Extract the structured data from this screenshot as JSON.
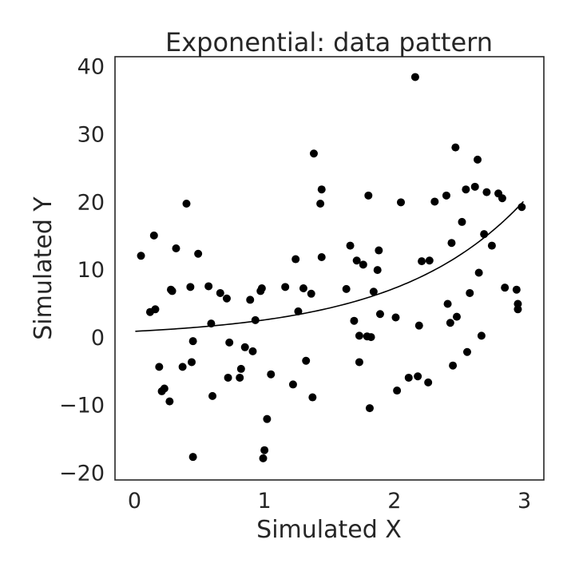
{
  "chart_data": {
    "type": "scatter",
    "title": "Exponential: data pattern",
    "xlabel": "Simulated X",
    "ylabel": "Simulated Y",
    "xlim": [
      -0.15,
      3.15
    ],
    "ylim": [
      -21,
      41.5
    ],
    "xticks": [
      0,
      1,
      2,
      3
    ],
    "yticks": [
      -20,
      -10,
      0,
      10,
      20,
      30,
      40
    ],
    "xtick_labels": [
      "0",
      "1",
      "2",
      "3"
    ],
    "ytick_labels": [
      "−20",
      "−10",
      "0",
      "10",
      "20",
      "30",
      "40"
    ],
    "grid": false,
    "marker_color": "#000000",
    "curve_color": "#000000",
    "points": [
      [
        0.05,
        12.1
      ],
      [
        0.12,
        3.8
      ],
      [
        0.15,
        15.1
      ],
      [
        0.16,
        4.2
      ],
      [
        0.19,
        -4.3
      ],
      [
        0.21,
        -7.9
      ],
      [
        0.23,
        -7.5
      ],
      [
        0.27,
        -9.4
      ],
      [
        0.28,
        7.1
      ],
      [
        0.29,
        6.9
      ],
      [
        0.32,
        13.2
      ],
      [
        0.37,
        -4.3
      ],
      [
        0.4,
        19.8
      ],
      [
        0.43,
        7.5
      ],
      [
        0.44,
        -3.6
      ],
      [
        0.45,
        -0.5
      ],
      [
        0.45,
        -17.6
      ],
      [
        0.49,
        12.4
      ],
      [
        0.57,
        7.6
      ],
      [
        0.59,
        2.1
      ],
      [
        0.6,
        -8.6
      ],
      [
        0.66,
        6.6
      ],
      [
        0.71,
        5.8
      ],
      [
        0.73,
        -0.7
      ],
      [
        0.72,
        -5.9
      ],
      [
        0.81,
        -5.9
      ],
      [
        0.82,
        -4.6
      ],
      [
        0.85,
        -1.4
      ],
      [
        0.89,
        5.6
      ],
      [
        0.91,
        -2.0
      ],
      [
        0.93,
        2.6
      ],
      [
        0.97,
        6.9
      ],
      [
        0.98,
        7.3
      ],
      [
        0.99,
        -17.8
      ],
      [
        1.0,
        -16.6
      ],
      [
        1.02,
        -12.0
      ],
      [
        1.05,
        -5.4
      ],
      [
        1.16,
        7.5
      ],
      [
        1.22,
        -6.9
      ],
      [
        1.24,
        11.6
      ],
      [
        1.26,
        3.9
      ],
      [
        1.3,
        7.3
      ],
      [
        1.32,
        -3.4
      ],
      [
        1.36,
        6.5
      ],
      [
        1.37,
        -8.8
      ],
      [
        1.38,
        27.2
      ],
      [
        1.43,
        19.8
      ],
      [
        1.44,
        21.9
      ],
      [
        1.44,
        11.9
      ],
      [
        1.63,
        7.2
      ],
      [
        1.66,
        13.6
      ],
      [
        1.69,
        2.5
      ],
      [
        1.71,
        11.4
      ],
      [
        1.73,
        0.3
      ],
      [
        1.73,
        -3.6
      ],
      [
        1.76,
        10.8
      ],
      [
        1.79,
        0.2
      ],
      [
        1.8,
        21.0
      ],
      [
        1.81,
        -10.4
      ],
      [
        1.82,
        0.1
      ],
      [
        1.84,
        6.8
      ],
      [
        1.87,
        10.0
      ],
      [
        1.88,
        12.9
      ],
      [
        1.89,
        3.5
      ],
      [
        2.01,
        3.0
      ],
      [
        2.02,
        -7.8
      ],
      [
        2.05,
        20.0
      ],
      [
        2.11,
        -5.9
      ],
      [
        2.16,
        38.5
      ],
      [
        2.18,
        -5.7
      ],
      [
        2.19,
        1.8
      ],
      [
        2.21,
        11.3
      ],
      [
        2.26,
        -6.6
      ],
      [
        2.27,
        11.4
      ],
      [
        2.31,
        20.1
      ],
      [
        2.4,
        21.0
      ],
      [
        2.41,
        5.0
      ],
      [
        2.43,
        2.2
      ],
      [
        2.44,
        14.0
      ],
      [
        2.45,
        -4.1
      ],
      [
        2.47,
        28.1
      ],
      [
        2.48,
        3.1
      ],
      [
        2.52,
        17.1
      ],
      [
        2.55,
        21.9
      ],
      [
        2.56,
        -2.1
      ],
      [
        2.58,
        6.6
      ],
      [
        2.62,
        22.3
      ],
      [
        2.64,
        26.3
      ],
      [
        2.65,
        9.6
      ],
      [
        2.67,
        0.3
      ],
      [
        2.69,
        15.3
      ],
      [
        2.71,
        21.5
      ],
      [
        2.75,
        13.6
      ],
      [
        2.8,
        21.3
      ],
      [
        2.83,
        20.6
      ],
      [
        2.85,
        7.4
      ],
      [
        2.94,
        7.1
      ],
      [
        2.95,
        5.0
      ],
      [
        2.95,
        4.2
      ],
      [
        2.98,
        19.3
      ]
    ],
    "fit_curve": {
      "type": "exponential",
      "a": 0.95,
      "b": 1.02,
      "x_range": [
        0.01,
        2.99
      ]
    }
  }
}
